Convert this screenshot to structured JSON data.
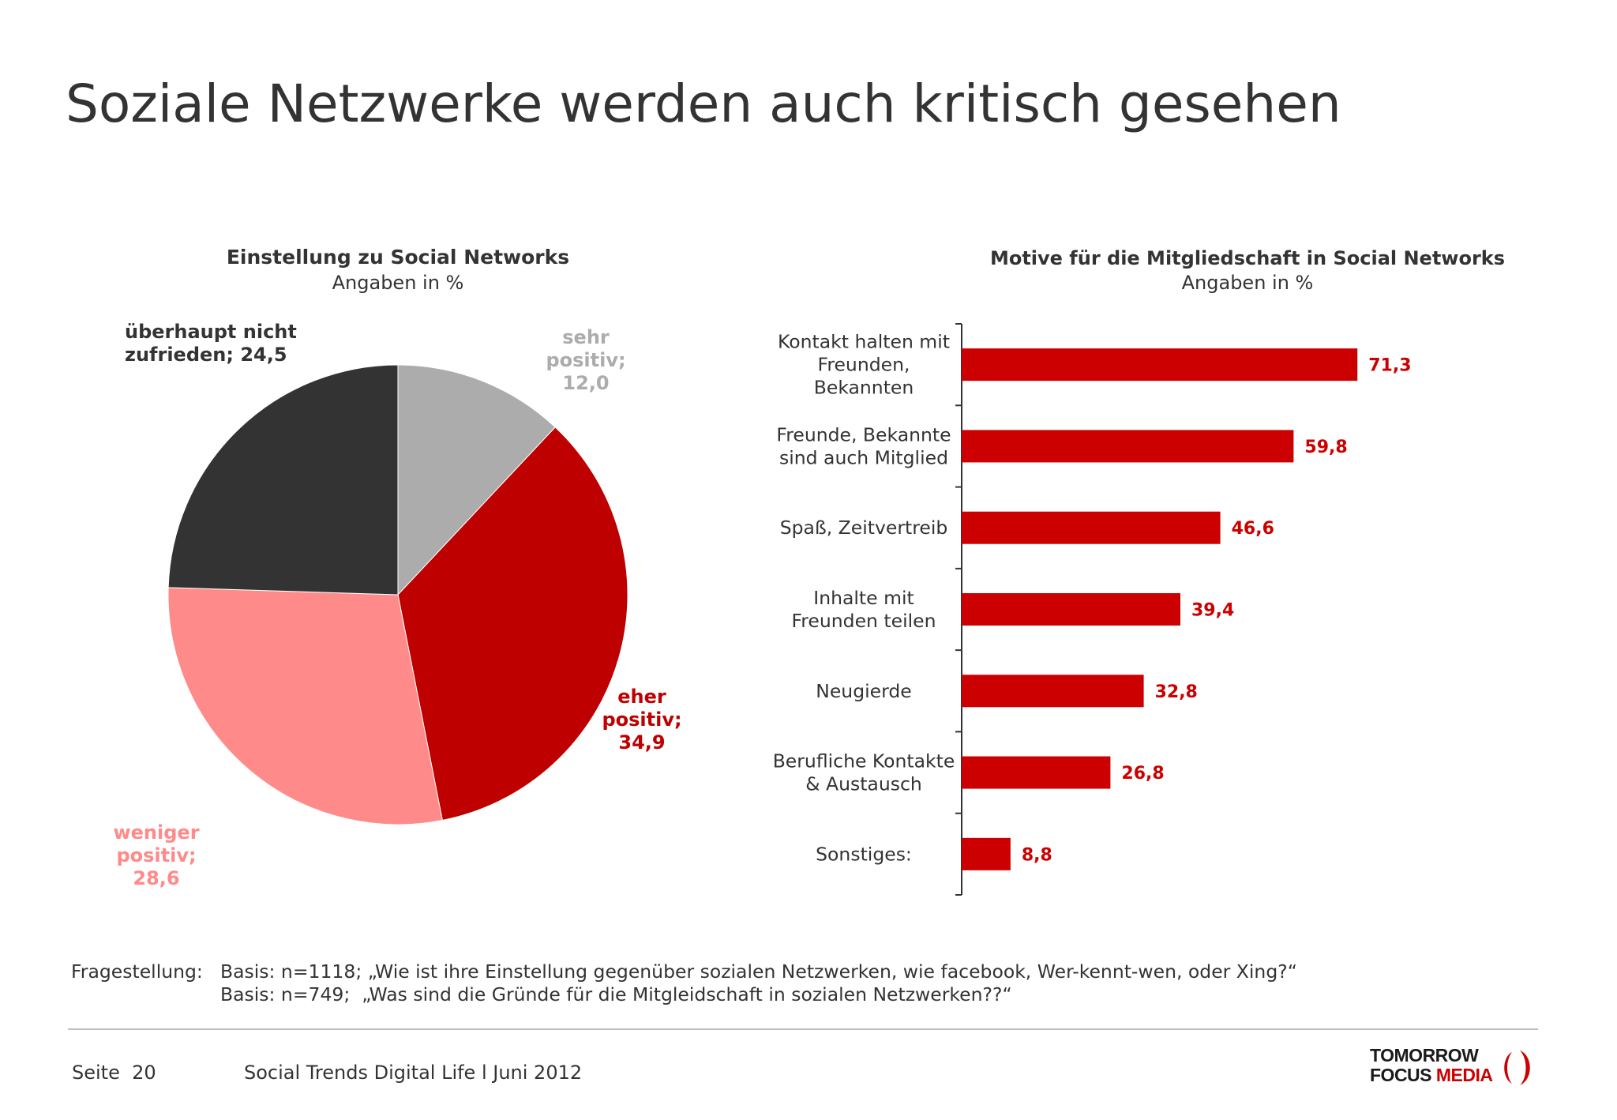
{
  "header": {
    "title": "Soziale Netzwerke werden auch kritisch gesehen"
  },
  "chart_data": [
    {
      "type": "pie",
      "title": "Einstellung zu Social Networks",
      "subtitle": "Angaben in %",
      "slices": [
        {
          "label": "sehr positiv;",
          "value": 12.0,
          "value_text": "12,0",
          "color": "#acacac"
        },
        {
          "label": "eher positiv;",
          "value": 34.9,
          "value_text": "34,9",
          "color": "#be0000"
        },
        {
          "label": "weniger positiv;",
          "value": 28.6,
          "value_text": "28,6",
          "color": "#ff8a8a"
        },
        {
          "label": "überhaupt nicht zufrieden;",
          "value": 24.5,
          "value_text": "24,5",
          "color": "#333333"
        }
      ],
      "display_labels": {
        "sehr": [
          "sehr",
          "positiv;",
          "12,0"
        ],
        "eher": [
          "eher",
          "positiv;",
          "34,9"
        ],
        "weniger": [
          "weniger",
          "positiv;",
          "28,6"
        ],
        "ueberhaupt": [
          "überhaupt nicht",
          "zufrieden; 24,5"
        ]
      }
    },
    {
      "type": "bar",
      "orientation": "horizontal",
      "title": "Motive für die Mitgliedschaft in Social Networks",
      "subtitle": "Angaben in %",
      "bar_color": "#cc0000",
      "value_label_color": "#cc0000",
      "categories": [
        [
          "Kontakt halten mit",
          "Freunden,",
          "Bekannten"
        ],
        [
          "Freunde, Bekannte",
          "sind auch Mitglied"
        ],
        [
          "Spaß, Zeitvertreib"
        ],
        [
          "Inhalte mit",
          "Freunden teilen"
        ],
        [
          "Neugierde"
        ],
        [
          "Berufliche Kontakte",
          "& Austausch"
        ],
        [
          "Sonstiges:"
        ]
      ],
      "values": [
        71.3,
        59.8,
        46.6,
        39.4,
        32.8,
        26.8,
        8.8
      ],
      "value_labels": [
        "71,3",
        "59,8",
        "46,6",
        "39,4",
        "32,8",
        "26,8",
        "8,8"
      ]
    }
  ],
  "footnote": {
    "label": "Fragestellung:",
    "lines": [
      "Basis: n=1118; „Wie ist ihre Einstellung gegenüber sozialen Netzwerken, wie facebook, Wer-kennt-wen, oder Xing?“",
      "Basis: n=749;  „Was sind die Gründe für die Mitgleidschaft in sozialen Netzwerken??“"
    ]
  },
  "footer": {
    "page": "Seite  20",
    "text": "Social Trends Digital Life l Juni 2012",
    "logo_line1": "TOMORROW",
    "logo_line2a": "FOCUS",
    "logo_line2b": "MEDIA",
    "logo_color_dark": "#1a1a1a",
    "logo_color_red": "#cc0000"
  }
}
